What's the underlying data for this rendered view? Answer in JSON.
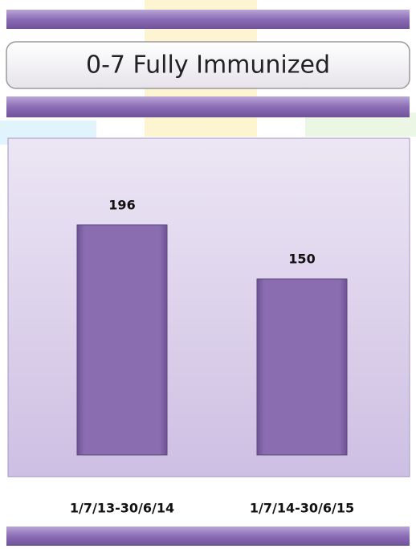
{
  "chart_data": {
    "type": "bar",
    "title": "0-7 Fully Immunized",
    "categories": [
      "1/7/13-30/6/14",
      "1/7/14-30/6/15"
    ],
    "values": [
      196,
      150
    ],
    "color": "#8a6cb0"
  }
}
